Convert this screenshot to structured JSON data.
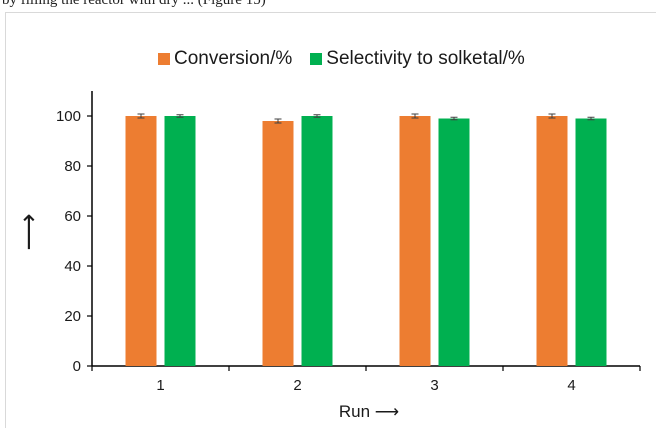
{
  "header_text": "by filling the reactor with dry ... (Figure 15)",
  "chart_data": {
    "type": "bar",
    "categories": [
      "1",
      "2",
      "3",
      "4"
    ],
    "series": [
      {
        "name": "Conversion/%",
        "values": [
          100,
          98,
          100,
          100
        ],
        "errors": [
          0.8,
          0.8,
          0.8,
          0.8
        ],
        "color": "#ED7D31"
      },
      {
        "name": "Selectivity to solketal/%",
        "values": [
          100,
          100,
          99,
          99
        ],
        "errors": [
          0.5,
          0.5,
          0.5,
          0.5
        ],
        "color": "#00B050"
      }
    ],
    "xlabel": "Run ⟶",
    "ylabel": "⟶",
    "ylim": [
      0,
      110
    ],
    "yticks": [
      "0",
      "20",
      "40",
      "60",
      "80",
      "100"
    ],
    "legend_position": "top",
    "grid": false
  }
}
